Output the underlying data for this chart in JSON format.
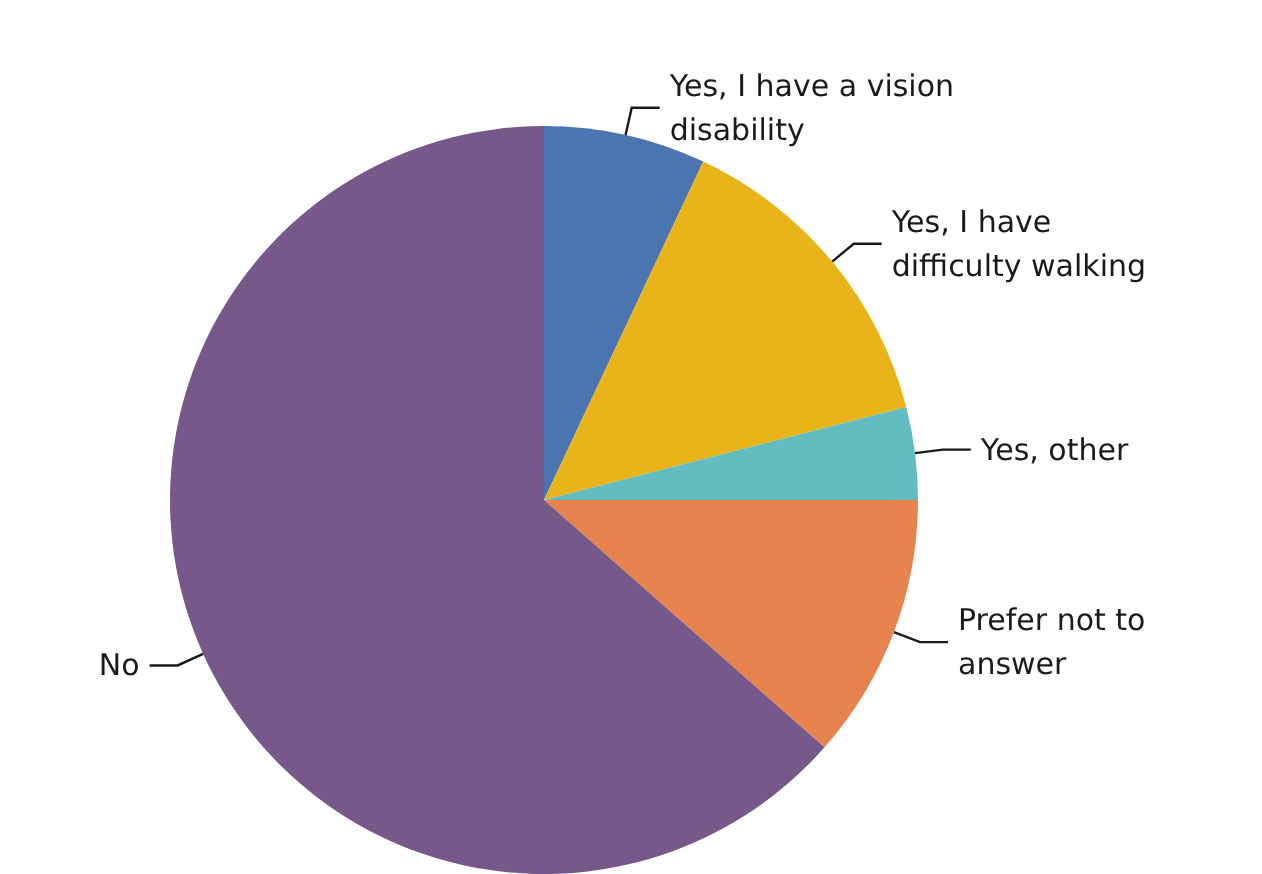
{
  "chart_data": {
    "type": "pie",
    "categories": [
      "Yes, I have a vision disability",
      "Yes, I have difficulty walking",
      "Yes, other",
      "Prefer not to answer",
      "No"
    ],
    "values": [
      7,
      14,
      4,
      11.5,
      63.5
    ],
    "colors": [
      "#4a75b0",
      "#e8b41a",
      "#62bcc0",
      "#e6834e",
      "#76588a"
    ],
    "legend": false
  }
}
